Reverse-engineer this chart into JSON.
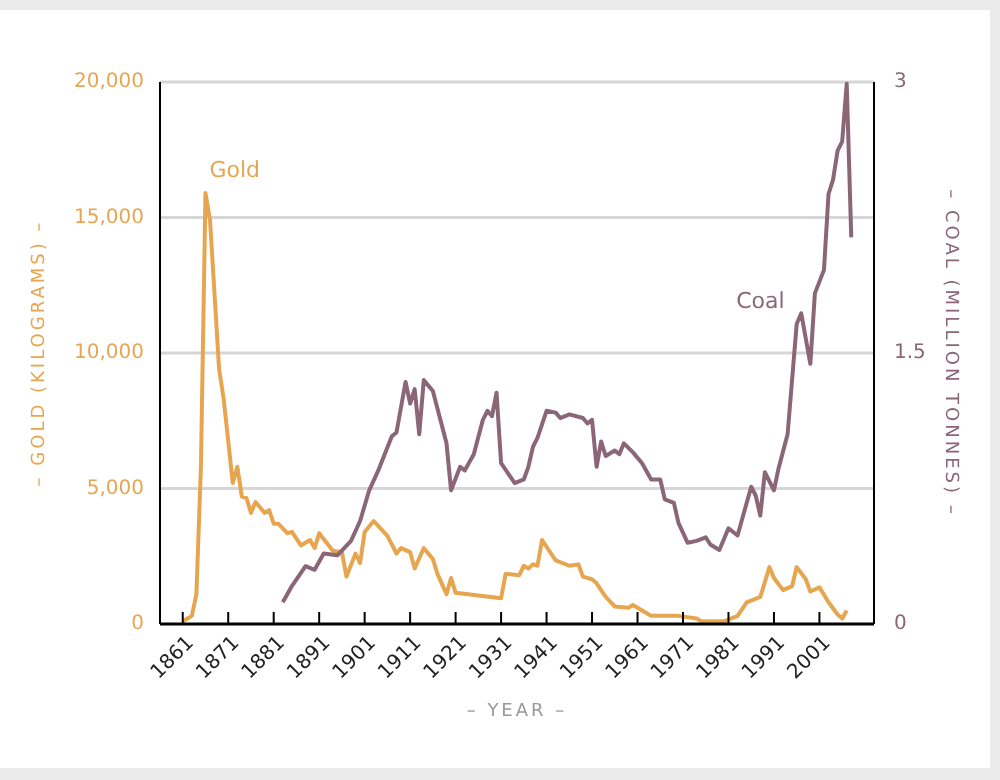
{
  "chart_data": {
    "type": "line",
    "xlabel": "– YEAR –",
    "ylabel": "– GOLD (KILOGRAMS) –",
    "y2label": "– COAL (MILLION TONNES) –",
    "xlim": [
      1856,
      2013
    ],
    "xticks": [
      1861,
      1871,
      1881,
      1891,
      1901,
      1911,
      1921,
      1931,
      1941,
      1951,
      1961,
      1971,
      1981,
      1991,
      2001
    ],
    "ylim": [
      0,
      20000
    ],
    "yticks": [
      {
        "value": 0,
        "label": "0"
      },
      {
        "value": 5000,
        "label": "5,000"
      },
      {
        "value": 10000,
        "label": "10,000"
      },
      {
        "value": 15000,
        "label": "15,000"
      },
      {
        "value": 20000,
        "label": "20,000"
      }
    ],
    "y2lim": [
      0,
      3
    ],
    "y2ticks": [
      0,
      1.5,
      3
    ],
    "grid": "y",
    "marker": "none",
    "line_style": "solid",
    "series": [
      {
        "name": "Gold",
        "color": "#e8a550",
        "x": [
          1861,
          1863,
          1864,
          1865,
          1866,
          1867,
          1869,
          1870,
          1872,
          1873,
          1874,
          1875,
          1876,
          1877,
          1879,
          1880,
          1881,
          1882,
          1884,
          1885,
          1887,
          1889,
          1890,
          1891,
          1894,
          1896,
          1897,
          1899,
          1900,
          1901,
          1903,
          1906,
          1908,
          1909,
          1911,
          1912,
          1914,
          1916,
          1917,
          1919,
          1920,
          1921,
          1931,
          1932,
          1935,
          1936,
          1937,
          1938,
          1939,
          1940,
          1943,
          1946,
          1948,
          1949,
          1951,
          1952,
          1954,
          1956,
          1959,
          1960,
          1962,
          1964,
          1970,
          1974,
          1975,
          1980,
          1983,
          1985,
          1988,
          1990,
          1991,
          1993,
          1995,
          1996,
          1998,
          1999,
          2001,
          2003,
          2005,
          2006,
          2007
        ],
        "values": [
          100,
          300,
          1100,
          5800,
          15900,
          14900,
          9400,
          8300,
          5200,
          5800,
          4700,
          4650,
          4100,
          4500,
          4100,
          4200,
          3700,
          3700,
          3350,
          3400,
          2900,
          3100,
          2800,
          3350,
          2700,
          2650,
          1750,
          2600,
          2250,
          3400,
          3800,
          3250,
          2600,
          2800,
          2650,
          2050,
          2800,
          2400,
          1850,
          1100,
          1700,
          1150,
          950,
          1850,
          1800,
          2150,
          2050,
          2200,
          2150,
          3100,
          2350,
          2150,
          2200,
          1750,
          1650,
          1500,
          1000,
          650,
          600,
          700,
          500,
          300,
          300,
          200,
          100,
          100,
          300,
          800,
          1000,
          2100,
          1700,
          1250,
          1400,
          2100,
          1650,
          1200,
          1350,
          800,
          350,
          200,
          500
        ]
      },
      {
        "name": "Coal",
        "color": "#8a6676",
        "axis": "y2",
        "x": [
          1883,
          1885,
          1888,
          1890,
          1892,
          1895,
          1898,
          1900,
          1902,
          1904,
          1907,
          1908,
          1910,
          1911,
          1912,
          1913,
          1914,
          1916,
          1919,
          1920,
          1922,
          1923,
          1925,
          1927,
          1928,
          1929,
          1930,
          1931,
          1934,
          1936,
          1937,
          1938,
          1939,
          1941,
          1943,
          1944,
          1946,
          1949,
          1950,
          1951,
          1952,
          1953,
          1954,
          1956,
          1957,
          1958,
          1960,
          1962,
          1964,
          1966,
          1967,
          1969,
          1970,
          1972,
          1974,
          1976,
          1977,
          1979,
          1981,
          1983,
          1986,
          1987,
          1988,
          1989,
          1991,
          1992,
          1994,
          1996,
          1997,
          1999,
          2000,
          2002,
          2003,
          2004,
          2005,
          2006,
          2007,
          2008
        ],
        "values": [
          0.12,
          0.21,
          0.32,
          0.3,
          0.39,
          0.38,
          0.46,
          0.57,
          0.74,
          0.85,
          1.04,
          1.06,
          1.34,
          1.22,
          1.3,
          1.05,
          1.35,
          1.29,
          1,
          0.74,
          0.87,
          0.85,
          0.94,
          1.13,
          1.18,
          1.15,
          1.28,
          0.89,
          0.78,
          0.8,
          0.87,
          0.98,
          1.03,
          1.18,
          1.17,
          1.14,
          1.16,
          1.14,
          1.11,
          1.13,
          0.87,
          1.01,
          0.93,
          0.96,
          0.94,
          1,
          0.95,
          0.89,
          0.8,
          0.8,
          0.69,
          0.67,
          0.56,
          0.45,
          0.46,
          0.48,
          0.44,
          0.41,
          0.53,
          0.49,
          0.76,
          0.71,
          0.6,
          0.84,
          0.74,
          0.86,
          1.05,
          1.66,
          1.72,
          1.44,
          1.83,
          1.96,
          2.38,
          2.46,
          2.62,
          2.67,
          2.99,
          2.14
        ]
      }
    ]
  }
}
